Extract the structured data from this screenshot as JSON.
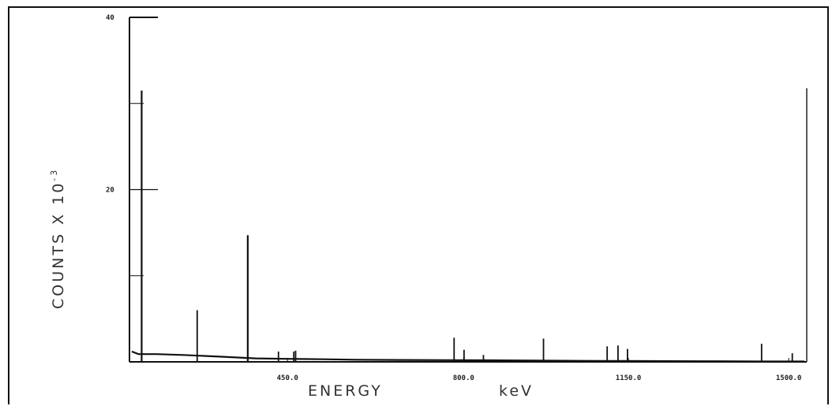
{
  "chart_data": {
    "type": "line",
    "xlabel": "ENERGY",
    "xunit": "keV",
    "ylabel": "COUNTS X 10",
    "ylabel_exponent": "-3",
    "xlim": [
      0,
      1500
    ],
    "ylim": [
      0,
      40
    ],
    "x_tick_labels": [
      {
        "value": 350,
        "label": "450.0"
      },
      {
        "value": 740,
        "label": "800.0"
      },
      {
        "value": 1105,
        "label": "1150.0"
      },
      {
        "value": 1460,
        "label": "1500.0"
      }
    ],
    "y_tick_labels": [
      {
        "value": 20,
        "label": "20"
      },
      {
        "value": 40,
        "label": "40"
      }
    ],
    "baseline": {
      "x": [
        5,
        20,
        60,
        120,
        200,
        280,
        350,
        430,
        500,
        600,
        700,
        800,
        900,
        1000,
        1100,
        1200,
        1300,
        1400,
        1495
      ],
      "y": [
        1.2,
        0.9,
        0.9,
        0.8,
        0.6,
        0.4,
        0.35,
        0.3,
        0.25,
        0.22,
        0.2,
        0.18,
        0.15,
        0.12,
        0.1,
        0.08,
        0.07,
        0.05,
        0.05
      ]
    },
    "peaks": [
      {
        "x": 27,
        "y": 31.5
      },
      {
        "x": 150,
        "y": 6.0
      },
      {
        "x": 262,
        "y": 14.7
      },
      {
        "x": 330,
        "y": 1.2
      },
      {
        "x": 364,
        "y": 1.2
      },
      {
        "x": 368,
        "y": 1.3
      },
      {
        "x": 719,
        "y": 2.8
      },
      {
        "x": 741,
        "y": 1.4
      },
      {
        "x": 784,
        "y": 0.8
      },
      {
        "x": 917,
        "y": 2.7
      },
      {
        "x": 1058,
        "y": 1.8
      },
      {
        "x": 1082,
        "y": 1.9
      },
      {
        "x": 1103,
        "y": 1.5
      },
      {
        "x": 1400,
        "y": 2.1
      },
      {
        "x": 1468,
        "y": 1.0
      }
    ]
  }
}
